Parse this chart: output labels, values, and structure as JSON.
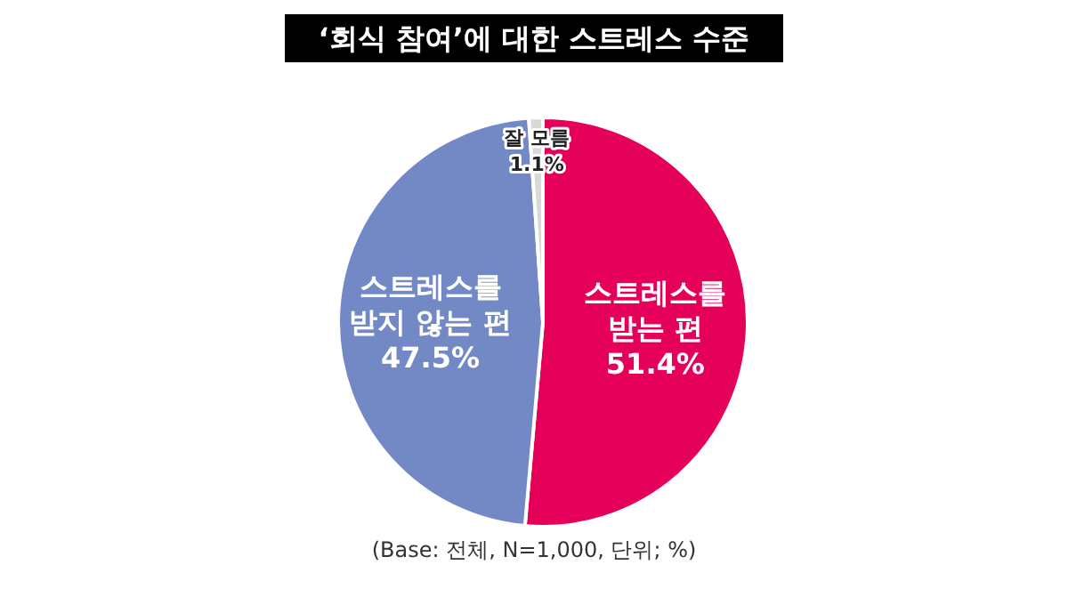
{
  "chart_data": {
    "type": "pie",
    "title": "‘회식 참여’에 대한 스트레스 수준",
    "categories": [
      "스트레스를\n받는 편",
      "스트레스를\n받지 않는 편",
      "잘 모름"
    ],
    "values": [
      51.4,
      47.5,
      1.1
    ],
    "colors": [
      "#e5005a",
      "#7389c6",
      "#d9d9d9"
    ],
    "value_labels": [
      "51.4%",
      "47.5%",
      "1.1%"
    ],
    "legend": false,
    "annotations": [
      "(Base: 전체, N=1,000, 단위; %)"
    ]
  }
}
